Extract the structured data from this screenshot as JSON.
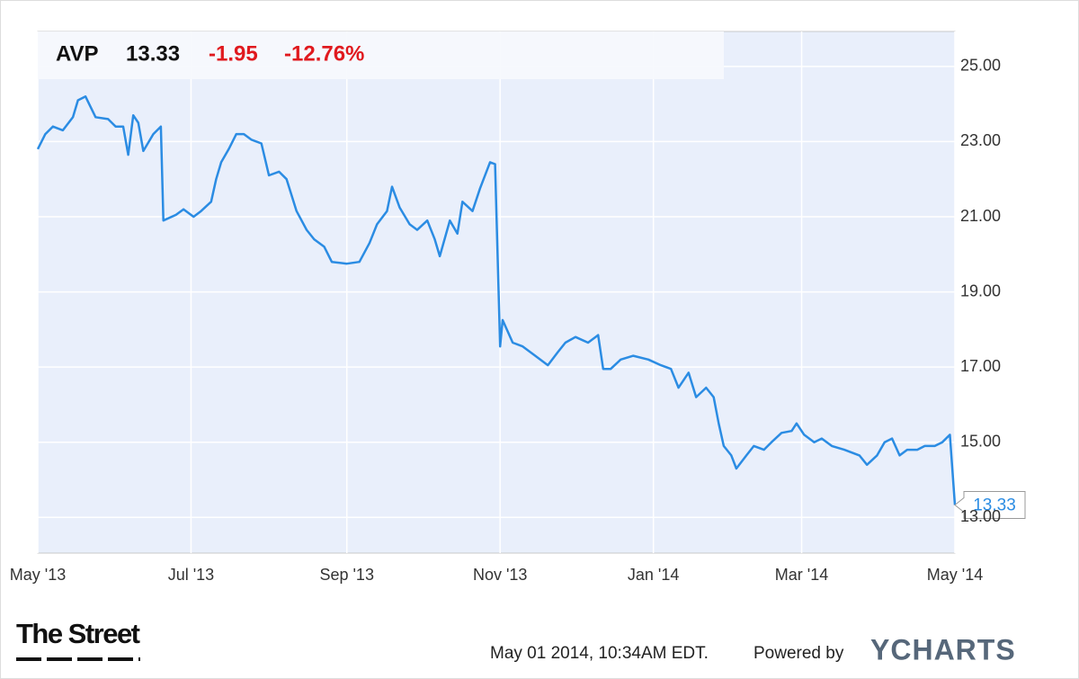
{
  "chart_data": {
    "type": "line",
    "ticker": "AVP",
    "price": "13.33",
    "change": "-1.95",
    "change_percent": "-12.76%",
    "timestamp": "May 01 2014, 10:34AM EDT.",
    "powered_by": "Powered by",
    "brand": "YCHARTS",
    "source_logo": "The Street",
    "x": [
      0,
      3,
      6,
      10,
      14,
      16,
      19,
      23,
      28,
      31,
      34,
      36,
      38,
      40,
      42,
      46,
      49,
      50,
      55,
      58,
      62,
      65,
      69,
      71,
      73,
      76,
      79,
      82,
      85,
      89,
      92,
      96,
      99,
      103,
      107,
      110,
      114,
      117,
      123,
      128,
      132,
      135,
      139,
      141,
      144,
      148,
      151,
      155,
      158,
      160,
      164,
      167,
      169,
      173,
      176,
      180,
      182,
      184,
      185,
      189,
      193,
      198,
      203,
      207,
      210,
      214,
      219,
      223,
      225,
      228,
      232,
      237,
      243,
      248,
      252,
      255,
      259,
      262,
      266,
      269,
      271,
      273,
      276,
      278,
      282,
      285,
      289,
      292,
      296,
      300,
      302,
      305,
      309,
      312,
      316,
      321,
      327,
      330,
      334,
      337,
      340,
      343,
      346,
      350,
      353,
      357,
      360,
      363,
      365
    ],
    "series": [
      {
        "name": "AVP",
        "color": "#2b8ce3",
        "values": [
          22.8,
          23.2,
          23.4,
          23.3,
          23.65,
          24.1,
          24.2,
          23.65,
          23.6,
          23.4,
          23.4,
          22.65,
          23.7,
          23.5,
          22.75,
          23.2,
          23.4,
          20.9,
          21.05,
          21.2,
          21.0,
          21.15,
          21.4,
          22.0,
          22.45,
          22.8,
          23.2,
          23.2,
          23.05,
          22.95,
          22.1,
          22.2,
          22.0,
          21.15,
          20.65,
          20.4,
          20.2,
          19.8,
          19.75,
          19.8,
          20.3,
          20.8,
          21.15,
          21.8,
          21.25,
          20.8,
          20.65,
          20.9,
          20.4,
          19.95,
          20.9,
          20.55,
          21.4,
          21.15,
          21.75,
          22.45,
          22.4,
          17.55,
          18.25,
          17.65,
          17.55,
          17.3,
          17.05,
          17.4,
          17.65,
          17.8,
          17.65,
          17.85,
          16.95,
          16.95,
          17.2,
          17.3,
          17.2,
          17.05,
          16.95,
          16.45,
          16.85,
          16.2,
          16.45,
          16.2,
          15.5,
          14.9,
          14.65,
          14.3,
          14.65,
          14.9,
          14.8,
          15.0,
          15.25,
          15.3,
          15.5,
          15.2,
          15.0,
          15.1,
          14.9,
          14.8,
          14.65,
          14.4,
          14.65,
          15.0,
          15.1,
          14.65,
          14.8,
          14.8,
          14.9,
          14.9,
          15.0,
          15.2,
          13.33
        ]
      }
    ],
    "xlim": [
      0,
      365
    ],
    "xticks": [
      {
        "value": 0,
        "label": "May '13"
      },
      {
        "value": 61,
        "label": "Jul '13"
      },
      {
        "value": 123,
        "label": "Sep '13"
      },
      {
        "value": 184,
        "label": "Nov '13"
      },
      {
        "value": 245,
        "label": "Jan '14"
      },
      {
        "value": 304,
        "label": "Mar '14"
      },
      {
        "value": 365,
        "label": "May '14"
      }
    ],
    "ylim": [
      12.05,
      25.93
    ],
    "yticks": [
      {
        "value": 13,
        "label": "13.00"
      },
      {
        "value": 15,
        "label": "15.00"
      },
      {
        "value": 17,
        "label": "17.00"
      },
      {
        "value": 19,
        "label": "19.00"
      },
      {
        "value": 21,
        "label": "21.00"
      },
      {
        "value": 23,
        "label": "23.00"
      },
      {
        "value": 25,
        "label": "25.00"
      }
    ],
    "grid": true
  }
}
